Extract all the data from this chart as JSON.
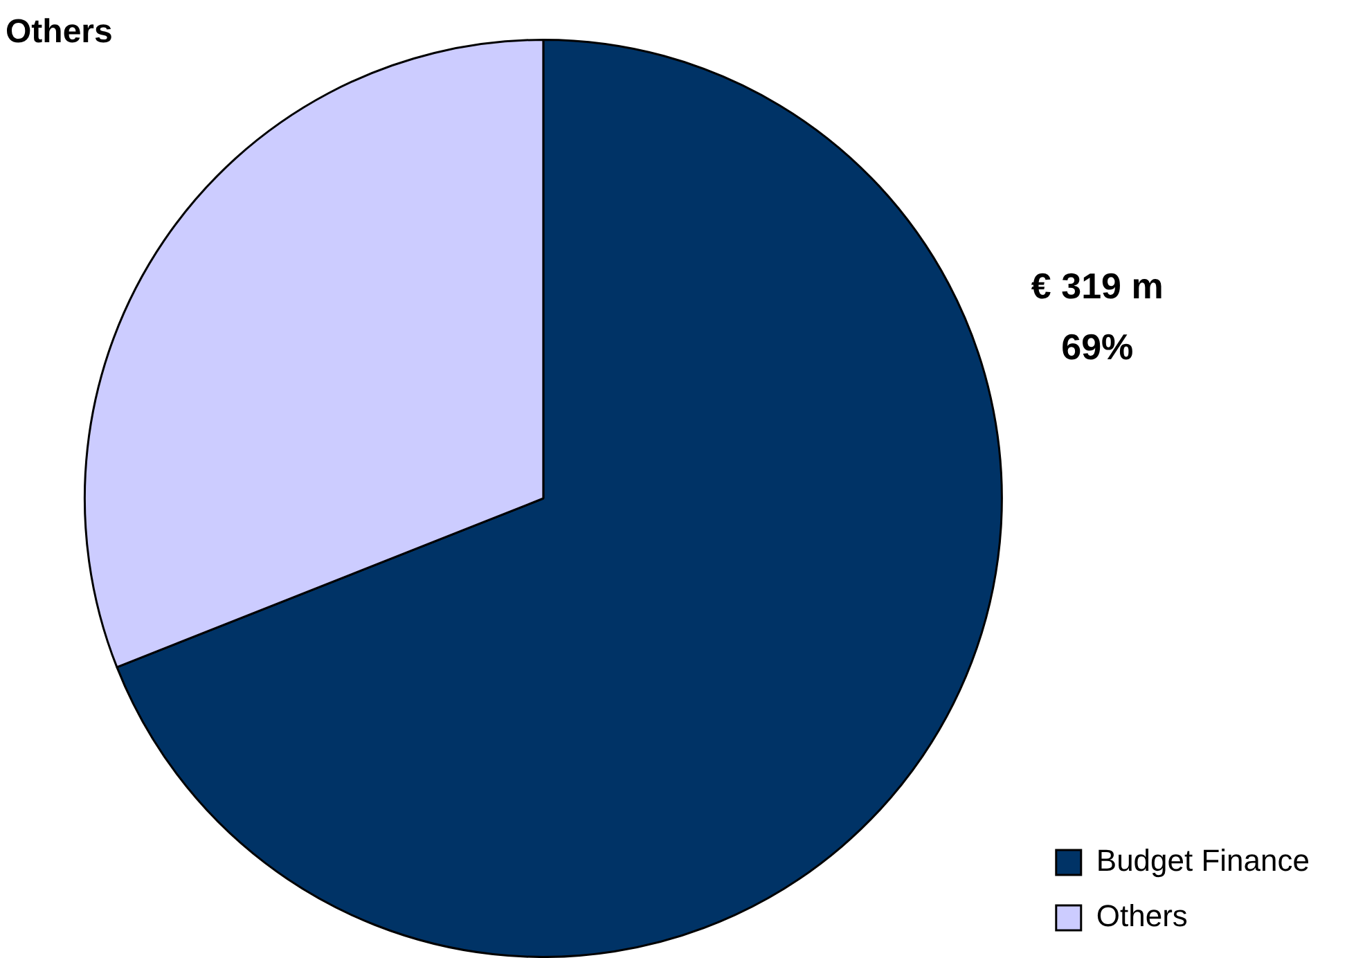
{
  "chart_data": {
    "type": "pie",
    "title": "Others",
    "categories": [
      "Budget Finance",
      "Others"
    ],
    "values": [
      69,
      31
    ],
    "colors": [
      "#003366",
      "#ccccff"
    ],
    "value_labels": [
      "€ 319 m\n69%",
      null
    ],
    "legend": "bottom right"
  }
}
